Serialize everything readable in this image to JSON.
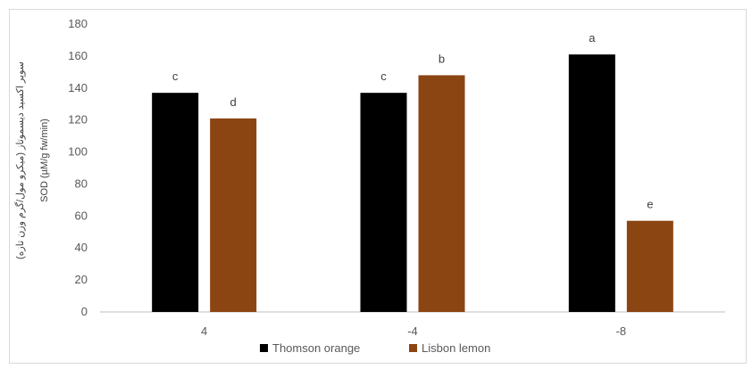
{
  "chart_data": {
    "type": "bar",
    "categories": [
      "4",
      "-4",
      "-8"
    ],
    "series": [
      {
        "name": "Thomson orange",
        "color": "#000000",
        "values": [
          137,
          137,
          161
        ],
        "labels": [
          "c",
          "c",
          "a"
        ]
      },
      {
        "name": "Lisbon lemon",
        "color": "#8B4513",
        "values": [
          121,
          148,
          57
        ],
        "labels": [
          "d",
          "b",
          "e"
        ]
      }
    ],
    "ylabel_line1": "سوپر اکسید دیسموتاز (میکرو مول/گرم وزن تازه)",
    "ylabel_line2": "SOD (µM/g fw/min)",
    "ylim": [
      0,
      180
    ],
    "yticks": [
      0,
      20,
      40,
      60,
      80,
      100,
      120,
      140,
      160,
      180
    ],
    "grid": false,
    "legend": "bottom"
  }
}
